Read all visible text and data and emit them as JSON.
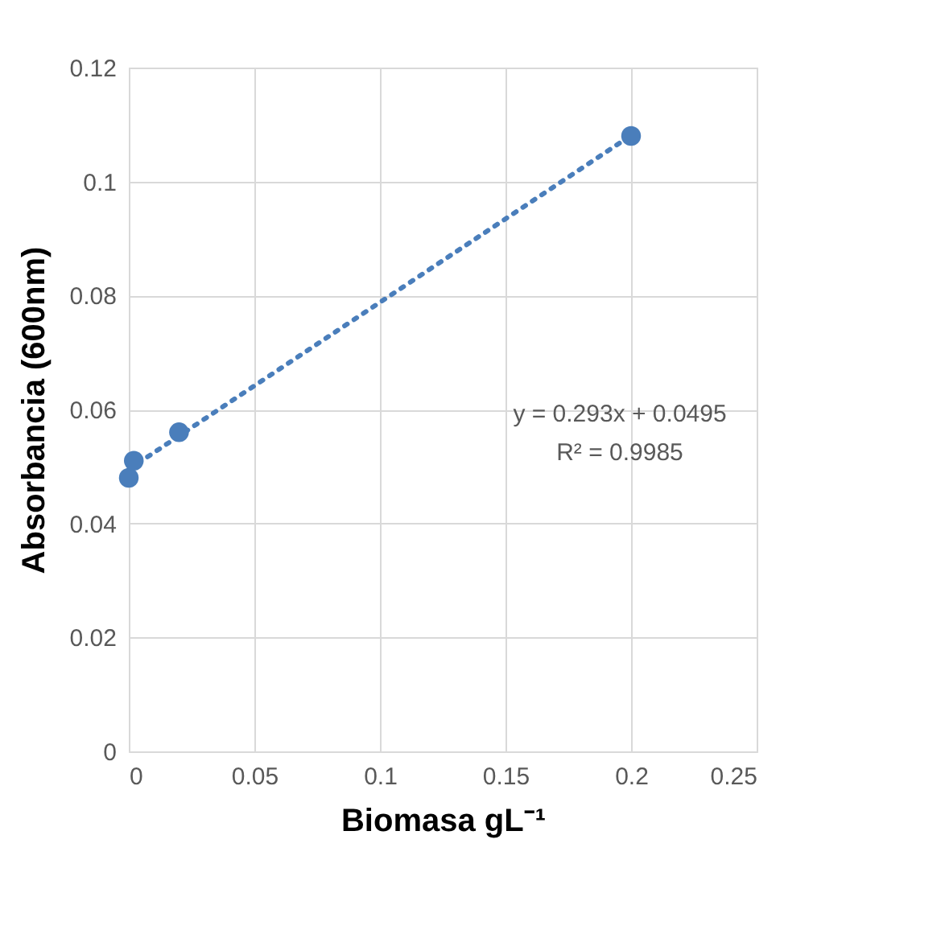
{
  "chart_data": {
    "type": "scatter",
    "xlabel": "Biomasa gL⁻¹",
    "ylabel": "Absorbancia (600nm)",
    "series": [
      {
        "color": "#4a7ebb",
        "x": [
          0,
          0.002,
          0.02,
          0.2
        ],
        "values": [
          0.048,
          0.051,
          0.056,
          0.108
        ],
        "marker": "circle"
      },
      {
        "type": "line",
        "color": "#4a7ebb",
        "x": [
          0,
          0.2
        ],
        "values": [
          0.0495,
          0.1081
        ],
        "line_style": "dotted"
      }
    ],
    "annotations": [
      "y = 0.293x + 0.0495",
      "R² = 0.9985"
    ],
    "xlim": [
      0,
      0.25
    ],
    "xticks": [
      0,
      0.05,
      0.1,
      0.15,
      0.2,
      0.25
    ],
    "ylim": [
      0,
      0.12
    ],
    "yticks": [
      0,
      0.02,
      0.04,
      0.06,
      0.08,
      0.1,
      0.12
    ],
    "grid": true
  }
}
